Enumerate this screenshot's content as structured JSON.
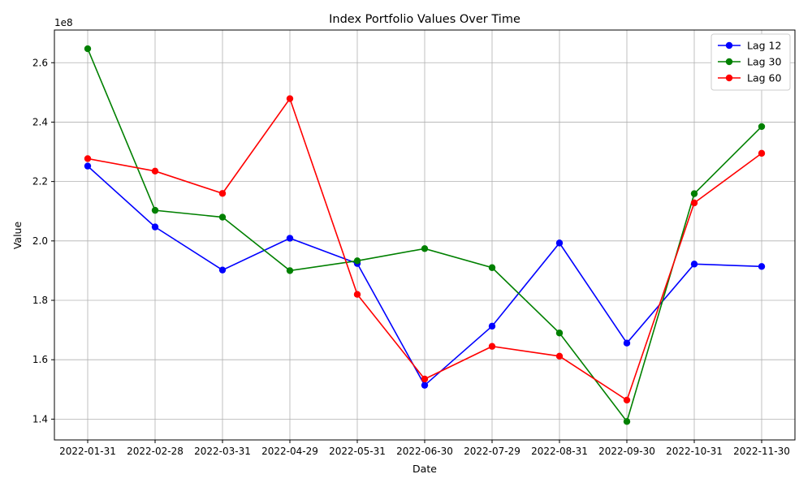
{
  "chart_data": {
    "type": "line",
    "title": "Index Portfolio Values Over Time",
    "xlabel": "Date",
    "ylabel": "Value",
    "y_offset_label": "1e8",
    "categories": [
      "2022-01-31",
      "2022-02-28",
      "2022-03-31",
      "2022-04-29",
      "2022-05-31",
      "2022-06-30",
      "2022-07-29",
      "2022-08-31",
      "2022-09-30",
      "2022-10-31",
      "2022-11-30"
    ],
    "ylim": [
      1.33,
      2.71
    ],
    "yticks": [
      1.4,
      1.6,
      1.8,
      2.0,
      2.2,
      2.4,
      2.6
    ],
    "ytick_labels": [
      "1.4",
      "1.6",
      "1.8",
      "2.0",
      "2.2",
      "2.4",
      "2.6"
    ],
    "grid": true,
    "legend_position": "top-right",
    "series": [
      {
        "name": "Lag 12",
        "color": "#0000ff",
        "values": [
          2.252,
          2.047,
          1.902,
          2.009,
          1.924,
          1.514,
          1.713,
          1.993,
          1.656,
          1.922,
          1.914
        ]
      },
      {
        "name": "Lag 30",
        "color": "#008000",
        "values": [
          2.647,
          2.103,
          2.08,
          1.9,
          1.933,
          1.974,
          1.91,
          1.69,
          1.392,
          2.159,
          2.385
        ]
      },
      {
        "name": "Lag 60",
        "color": "#ff0000",
        "values": [
          2.277,
          2.235,
          2.16,
          2.479,
          1.82,
          1.535,
          1.645,
          1.612,
          1.464,
          2.128,
          2.295
        ]
      }
    ]
  }
}
